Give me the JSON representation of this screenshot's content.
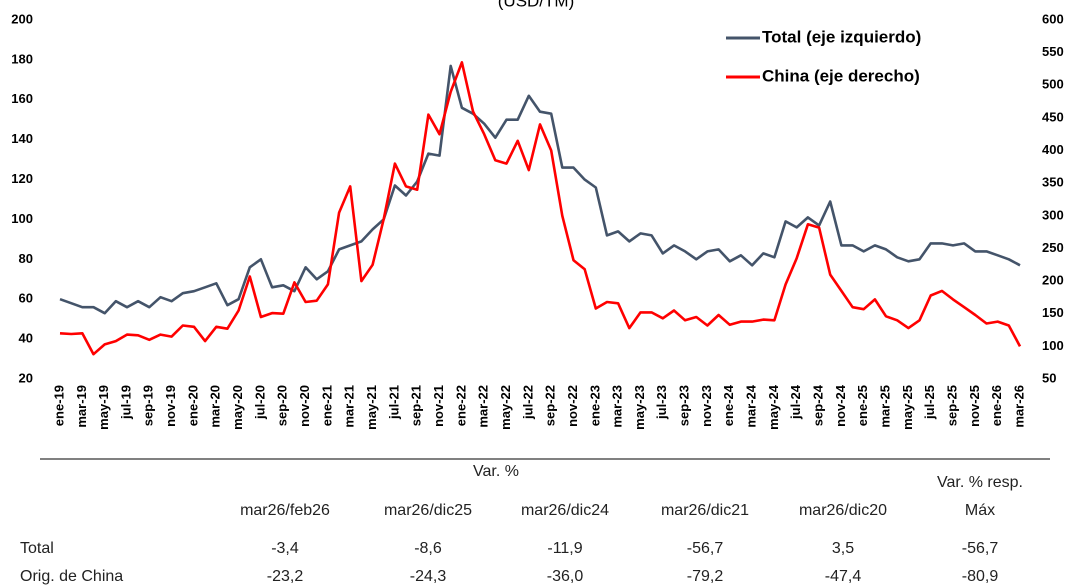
{
  "chart_data": {
    "type": "line",
    "title": "(USD/TM)",
    "categories": [
      "ene-19",
      null,
      "mar-19",
      null,
      "may-19",
      null,
      "jul-19",
      null,
      "sep-19",
      null,
      "nov-19",
      null,
      "ene-20",
      null,
      "mar-20",
      null,
      "may-20",
      null,
      "jul-20",
      null,
      "sep-20",
      null,
      "nov-20",
      null,
      "ene-21",
      null,
      "mar-21",
      null,
      "may-21",
      null,
      "jul-21",
      null,
      "sep-21",
      null,
      "nov-21",
      null,
      "ene-22",
      null,
      "mar-22",
      null,
      "may-22",
      null,
      "jul-22",
      null,
      "sep-22",
      null,
      "nov-22",
      null,
      "ene-23",
      null,
      "mar-23",
      null,
      "may-23",
      null,
      "jul-23",
      null,
      "sep-23",
      null,
      "nov-23",
      null,
      "ene-24",
      null,
      "mar-24",
      null,
      "may-24",
      null,
      "jul-24",
      null,
      "sep-24",
      null,
      "nov-24",
      null,
      "ene-25",
      null,
      "mar-25",
      null,
      "may-25",
      null,
      "jul-25",
      null,
      "sep-25",
      null,
      "nov-25",
      null,
      "ene-26",
      null,
      "mar-26"
    ],
    "series": [
      {
        "name": "Total (eje izquierdo)",
        "color": "#44546a",
        "axis": "y",
        "values": [
          60,
          58,
          56,
          56,
          53,
          59,
          56,
          59,
          56,
          61,
          59,
          63,
          64,
          66,
          68,
          57,
          60,
          76,
          80,
          66,
          67,
          64,
          76,
          70,
          74,
          85,
          87,
          89,
          95,
          100,
          117,
          112,
          119,
          133,
          132,
          177,
          156,
          153,
          148,
          141,
          150,
          150,
          162,
          154,
          153,
          126,
          126,
          120,
          116,
          92,
          94,
          89,
          93,
          92,
          83,
          87,
          84,
          80,
          84,
          85,
          79,
          82,
          77,
          83,
          81,
          99,
          96,
          101,
          97,
          109,
          87,
          87,
          84,
          87,
          85,
          81,
          79,
          80,
          88,
          88,
          87,
          88,
          84,
          84,
          82,
          80,
          77
        ]
      },
      {
        "name": "China (eje derecho)",
        "color": "#ff0000",
        "axis": "y2",
        "values": [
          120,
          119,
          120,
          88,
          103,
          108,
          118,
          117,
          110,
          118,
          115,
          132,
          130,
          108,
          130,
          127,
          155,
          207,
          145,
          151,
          150,
          198,
          168,
          170,
          195,
          305,
          345,
          200,
          225,
          295,
          380,
          345,
          340,
          455,
          425,
          490,
          535,
          460,
          425,
          385,
          380,
          415,
          370,
          440,
          400,
          300,
          232,
          218,
          158,
          168,
          166,
          128,
          152,
          152,
          143,
          155,
          140,
          145,
          132,
          148,
          133,
          138,
          138,
          141,
          140,
          195,
          235,
          287,
          282,
          210,
          185,
          160,
          157,
          172,
          146,
          140,
          128,
          140,
          178,
          185,
          172,
          160,
          148,
          135,
          138,
          132,
          100
        ]
      }
    ],
    "ylim": [
      20,
      200
    ],
    "yticks": [
      20,
      40,
      60,
      80,
      100,
      120,
      140,
      160,
      180,
      200
    ],
    "y2lim": [
      50,
      600
    ],
    "y2ticks": [
      50,
      100,
      150,
      200,
      250,
      300,
      350,
      400,
      450,
      500,
      550,
      600
    ],
    "grid": false,
    "legend": "upper right"
  },
  "table": {
    "group_header": "Var. %",
    "columns": [
      "mar26/feb26",
      "mar26/dic25",
      "mar26/dic24",
      "mar26/dic21",
      "mar26/dic20",
      [
        "Var. % resp.",
        "Máx"
      ]
    ],
    "rows": [
      [
        "Total",
        "-3,4",
        "-8,6",
        "-11,9",
        "-56,7",
        "3,5",
        "-56,7"
      ],
      [
        "Orig. de China",
        "-23,2",
        "-24,3",
        "-36,0",
        "-79,2",
        "-47,4",
        "-80,9"
      ]
    ]
  }
}
